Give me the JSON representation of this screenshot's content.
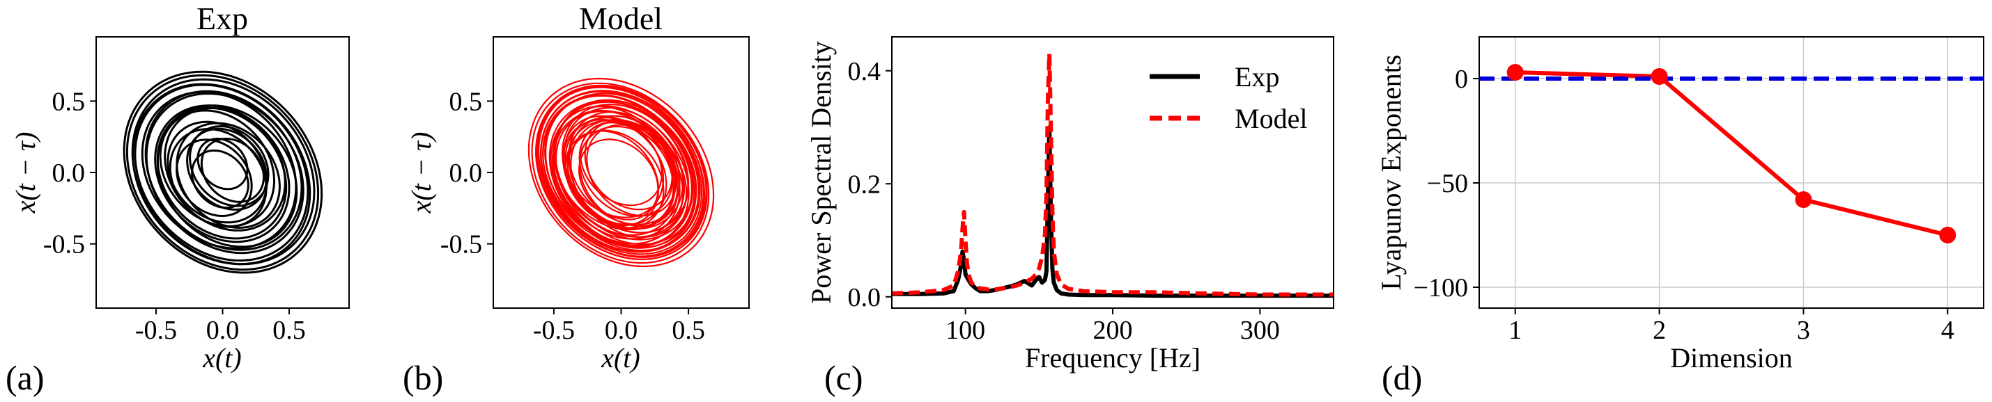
{
  "chart_data": [
    {
      "panel_label": "(a)",
      "type": "line",
      "title": "Exp",
      "xlabel": "x(t)",
      "ylabel": "x(t − τ)",
      "xlim": [
        -0.95,
        0.95
      ],
      "ylim": [
        -0.95,
        0.95
      ],
      "xticks": [
        "-0.5",
        "0.0",
        "0.5"
      ],
      "xtick_values": [
        -0.5,
        0.0,
        0.5
      ],
      "yticks": [
        "-0.5",
        "0.0",
        "0.5"
      ],
      "ytick_values": [
        -0.5,
        0.0,
        0.5
      ],
      "grid": false,
      "series": [
        {
          "color": "#000000",
          "kind": "phase-portrait",
          "rings": 22,
          "r_outer": 0.8,
          "r_inner": 0.2,
          "tilt_deg": -38,
          "aspect": 0.8
        }
      ]
    },
    {
      "panel_label": "(b)",
      "type": "line",
      "title": "Model",
      "xlabel": "x(t)",
      "ylabel": "x(t − τ)",
      "xlim": [
        -0.95,
        0.95
      ],
      "ylim": [
        -0.95,
        0.95
      ],
      "xticks": [
        "-0.5",
        "0.0",
        "0.5"
      ],
      "xtick_values": [
        -0.5,
        0.0,
        0.5
      ],
      "yticks": [
        "-0.5",
        "0.0",
        "0.5"
      ],
      "ytick_values": [
        -0.5,
        0.0,
        0.5
      ],
      "grid": false,
      "series": [
        {
          "color": "#ff0000",
          "kind": "phase-portrait",
          "rings": 40,
          "r_outer": 0.72,
          "r_inner": 0.33,
          "tilt_deg": -40,
          "aspect": 0.78
        }
      ]
    },
    {
      "panel_label": "(c)",
      "type": "line",
      "title": "",
      "xlabel": "Frequency [Hz]",
      "ylabel": "Power Spectral Density",
      "xlim": [
        50,
        350
      ],
      "ylim": [
        -0.02,
        0.46
      ],
      "xticks": [
        "100",
        "200",
        "300"
      ],
      "xtick_values": [
        100,
        200,
        300
      ],
      "yticks": [
        "0.0",
        "0.2",
        "0.4"
      ],
      "ytick_values": [
        0.0,
        0.2,
        0.4
      ],
      "grid": false,
      "legend": "top-right",
      "series": [
        {
          "name": "Exp",
          "color": "#000000",
          "style": "solid",
          "x": [
            50,
            70,
            85,
            92,
            95,
            97,
            98,
            99,
            100,
            101,
            102,
            104,
            107,
            110,
            115,
            120,
            125,
            130,
            135,
            140,
            145,
            148,
            150,
            152,
            154,
            155,
            156,
            157,
            158,
            159,
            160,
            162,
            165,
            170,
            180,
            200,
            230,
            260,
            300,
            350
          ],
          "y": [
            0.005,
            0.005,
            0.006,
            0.01,
            0.03,
            0.055,
            0.08,
            0.065,
            0.04,
            0.035,
            0.03,
            0.022,
            0.015,
            0.01,
            0.01,
            0.012,
            0.015,
            0.018,
            0.022,
            0.028,
            0.02,
            0.03,
            0.035,
            0.025,
            0.03,
            0.045,
            0.18,
            0.3,
            0.15,
            0.05,
            0.025,
            0.012,
            0.006,
            0.004,
            0.003,
            0.003,
            0.002,
            0.002,
            0.002,
            0.002
          ]
        },
        {
          "name": "Model",
          "color": "#ff0000",
          "style": "dashed",
          "x": [
            50,
            70,
            85,
            92,
            95,
            97,
            98,
            99,
            100,
            101,
            102,
            104,
            107,
            110,
            115,
            120,
            125,
            130,
            135,
            140,
            145,
            148,
            150,
            152,
            154,
            155,
            156,
            157,
            158,
            159,
            160,
            162,
            165,
            170,
            180,
            200,
            230,
            260,
            300,
            350
          ],
          "y": [
            0.006,
            0.008,
            0.012,
            0.02,
            0.045,
            0.08,
            0.12,
            0.15,
            0.1,
            0.06,
            0.04,
            0.025,
            0.018,
            0.015,
            0.013,
            0.013,
            0.015,
            0.017,
            0.02,
            0.025,
            0.032,
            0.04,
            0.05,
            0.07,
            0.11,
            0.18,
            0.35,
            0.43,
            0.3,
            0.15,
            0.08,
            0.04,
            0.022,
            0.014,
            0.01,
            0.008,
            0.008,
            0.006,
            0.004,
            0.004
          ]
        }
      ]
    },
    {
      "panel_label": "(d)",
      "type": "line",
      "title": "",
      "xlabel": "Dimension",
      "ylabel": "Lyapunov Exponents",
      "xlim": [
        0.75,
        4.25
      ],
      "ylim": [
        -110,
        20
      ],
      "xticks": [
        "1",
        "2",
        "3",
        "4"
      ],
      "xtick_values": [
        1,
        2,
        3,
        4
      ],
      "yticks": [
        "0",
        "−50",
        "−100"
      ],
      "ytick_values": [
        0,
        -50,
        -100
      ],
      "grid": true,
      "series": [
        {
          "color": "#ff0000",
          "style": "solid-markers",
          "x": [
            1,
            2,
            3,
            4
          ],
          "y": [
            3,
            1,
            -58,
            -75
          ]
        },
        {
          "color": "#0000dd",
          "style": "dashed-hline",
          "y_value": 0
        }
      ]
    }
  ]
}
